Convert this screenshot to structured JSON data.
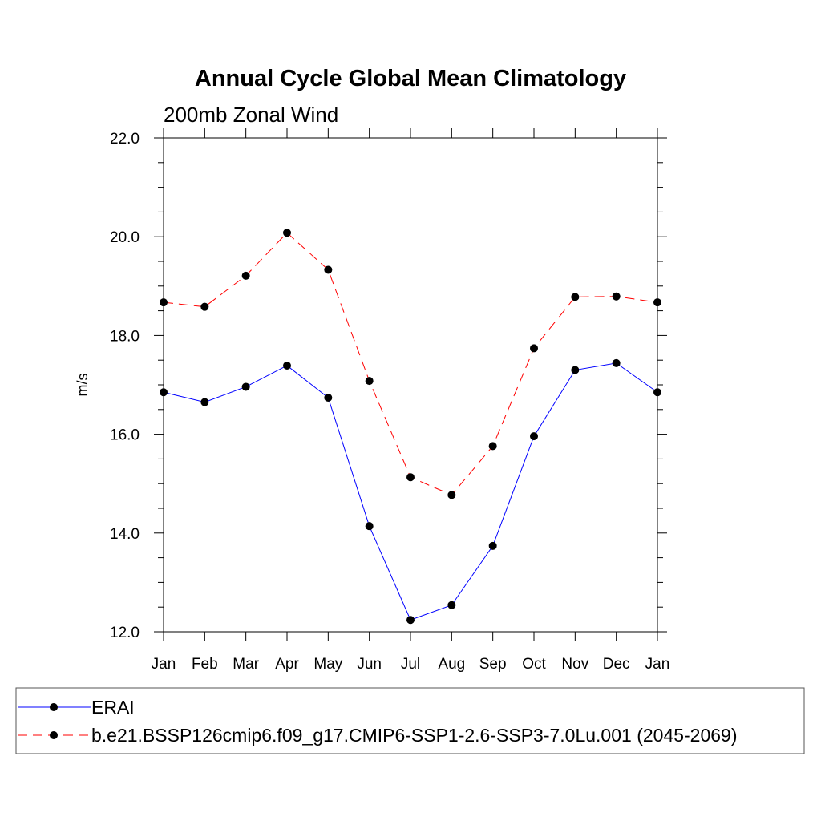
{
  "chart_data": {
    "type": "line",
    "title": "Annual Cycle Global Mean Climatology",
    "subtitle": "200mb Zonal Wind",
    "ylabel": "m/s",
    "xlabel": "",
    "categories": [
      "Jan",
      "Feb",
      "Mar",
      "Apr",
      "May",
      "Jun",
      "Jul",
      "Aug",
      "Sep",
      "Oct",
      "Nov",
      "Dec",
      "Jan"
    ],
    "ylim": [
      12.0,
      22.0
    ],
    "yticks": [
      "12.0",
      "14.0",
      "16.0",
      "18.0",
      "20.0",
      "22.0"
    ],
    "grid": false,
    "legend_position": "bottom",
    "series": [
      {
        "name": "ERAI",
        "color": "#0000ff",
        "line_style": "solid",
        "values": [
          16.85,
          16.65,
          16.96,
          17.39,
          16.74,
          14.14,
          12.24,
          12.54,
          13.74,
          15.96,
          17.3,
          17.44,
          16.85
        ]
      },
      {
        "name": "b.e21.BSSP126cmip6.f09_g17.CMIP6-SSP1-2.6-SSP3-7.0Lu.001 (2045-2069)",
        "color": "#ff0000",
        "line_style": "dashed",
        "values": [
          18.67,
          18.58,
          19.21,
          20.08,
          19.33,
          17.08,
          15.13,
          14.77,
          15.76,
          17.74,
          18.78,
          18.79,
          18.67
        ]
      }
    ]
  }
}
